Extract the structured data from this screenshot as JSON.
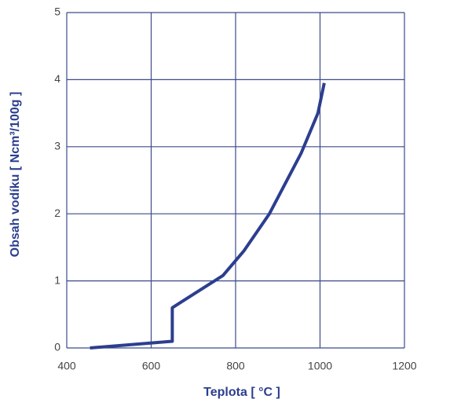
{
  "chart_data": {
    "type": "line",
    "x_label": "Teplota  [ °C ]",
    "y_label": "Obsah vodíku [ Ncm³/100g ]",
    "series": [
      {
        "name": "Obsah vodíku",
        "color": "#2c3e8e",
        "x": [
          455,
          650,
          650,
          770,
          820,
          880,
          955,
          995,
          1010
        ],
        "values": [
          0,
          0.1,
          0.6,
          1.08,
          1.45,
          2.0,
          2.9,
          3.5,
          3.95
        ]
      }
    ],
    "xlim": [
      400,
      1200
    ],
    "xticks": [
      400,
      600,
      800,
      1000,
      1200
    ],
    "ylim": [
      0,
      5
    ],
    "yticks": [
      0,
      1,
      2,
      3,
      4,
      5
    ],
    "grid": true,
    "grid_color": "#3c4a8a"
  }
}
